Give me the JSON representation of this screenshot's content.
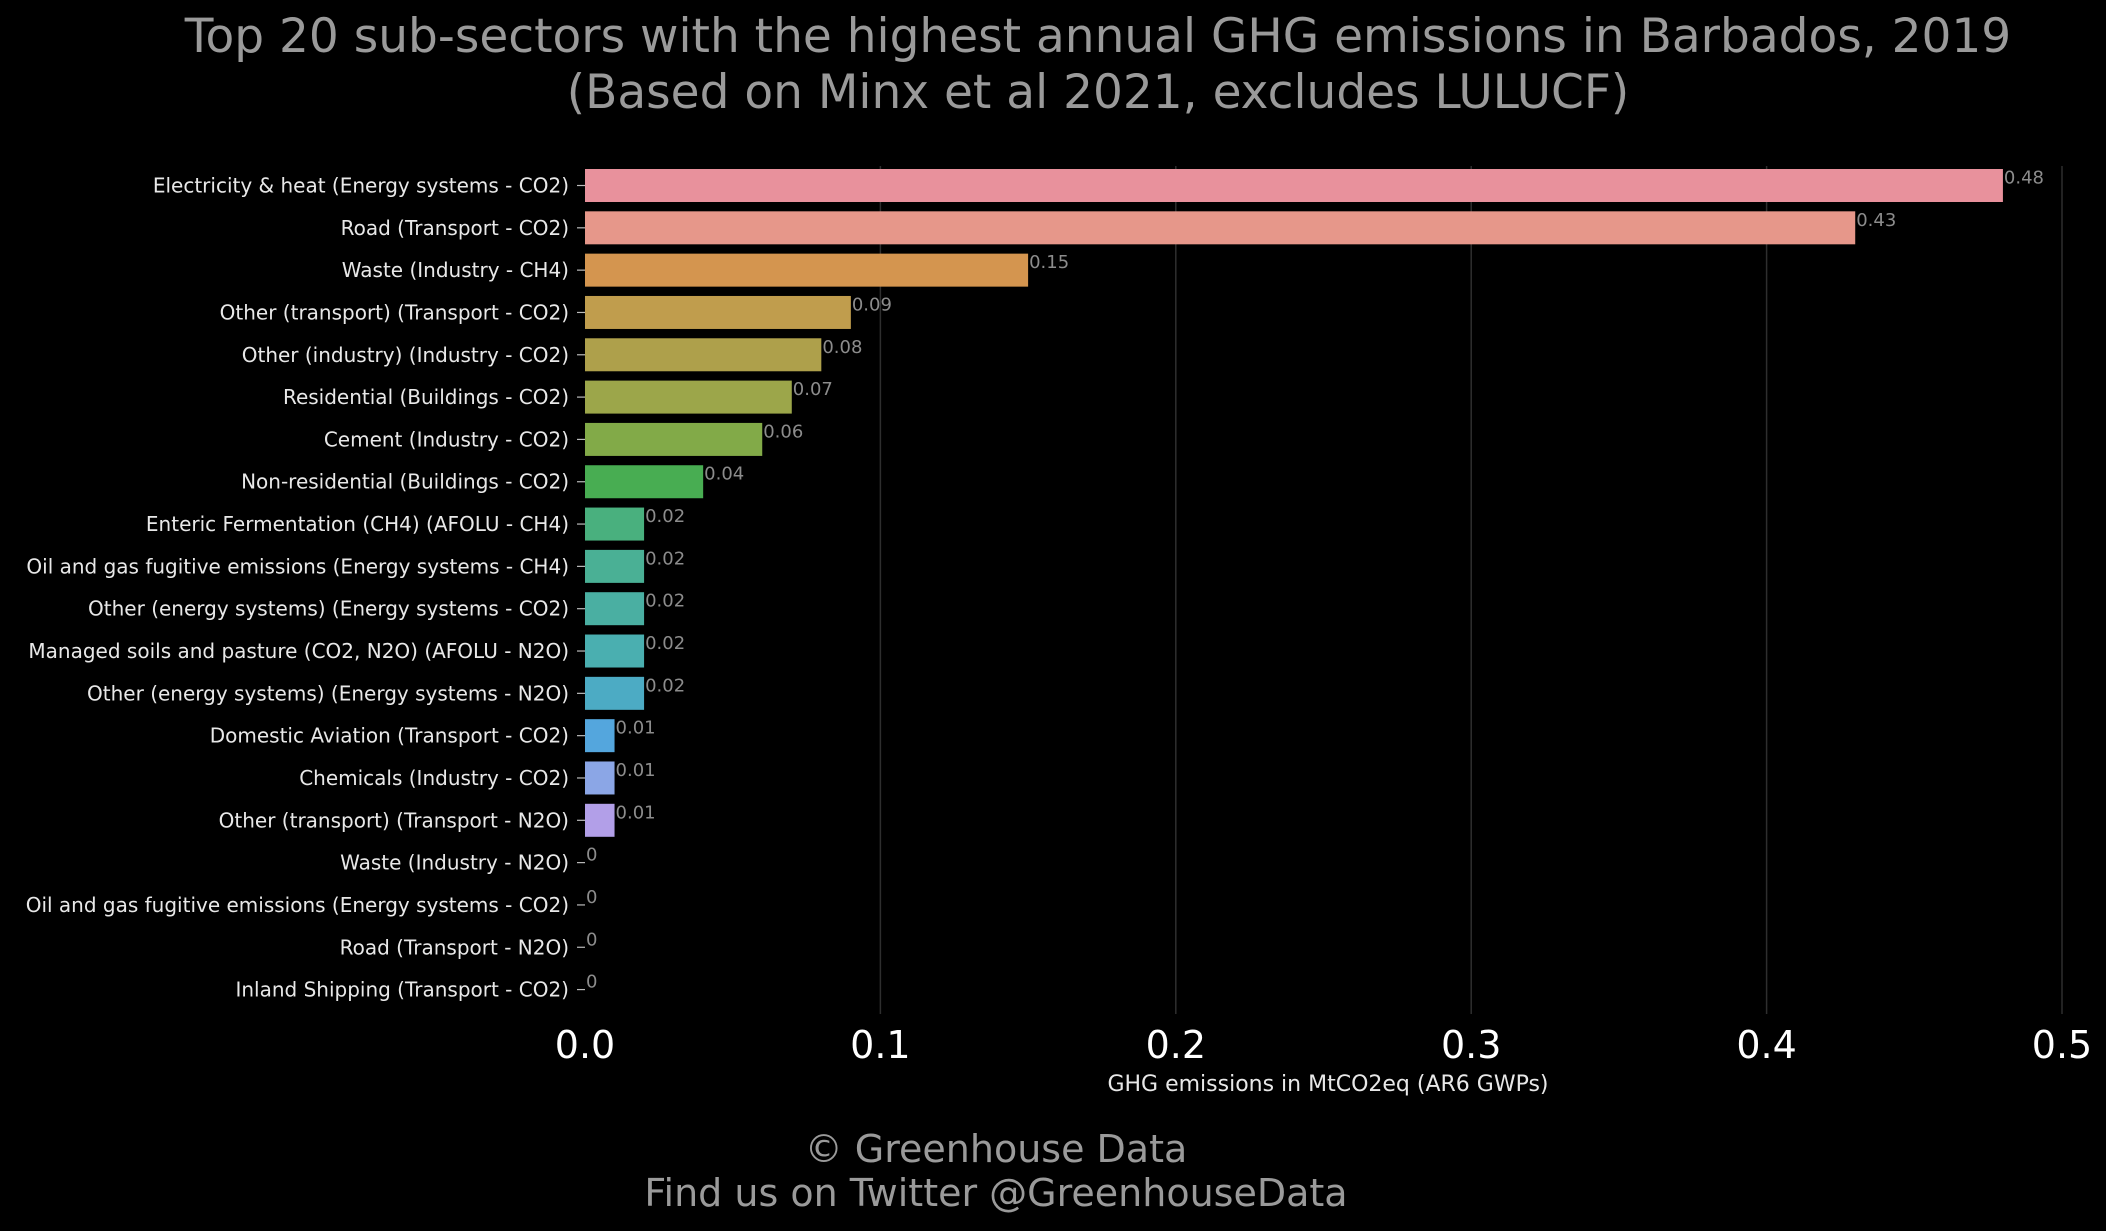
{
  "title_line1": "Top 20 sub-sectors with the highest annual GHG emissions in Barbados, 2019",
  "title_line2": "(Based on Minx et al 2021, excludes LULUCF)",
  "credit_line1": "© Greenhouse Data",
  "credit_line2": "Find us on Twitter @GreenhouseData",
  "colors": {
    "background": "#000000",
    "title": "#9a9a9a",
    "label": "#e8e8e8",
    "value_label": "#8c8c8c",
    "grid": "#2e2e2e"
  },
  "chart_data": {
    "type": "bar",
    "orientation": "horizontal",
    "title": "Top 20 sub-sectors with the highest annual GHG emissions in Barbados, 2019",
    "subtitle": "(Based on Minx et al 2021, excludes LULUCF)",
    "xlabel": "GHG emissions in MtCO2eq (AR6 GWPs)",
    "ylabel": "",
    "xlim": [
      0,
      0.5
    ],
    "xticks": [
      0.0,
      0.1,
      0.2,
      0.3,
      0.4,
      0.5
    ],
    "xtick_labels": [
      "0.0",
      "0.1",
      "0.2",
      "0.3",
      "0.4",
      "0.5"
    ],
    "grid": "vertical",
    "categories": [
      "Electricity & heat (Energy systems - CO2)",
      "Road (Transport - CO2)",
      "Waste (Industry - CH4)",
      "Other (transport) (Transport - CO2)",
      "Other (industry) (Industry - CO2)",
      "Residential (Buildings - CO2)",
      "Cement (Industry - CO2)",
      "Non-residential (Buildings - CO2)",
      "Enteric Fermentation (CH4) (AFOLU - CH4)",
      "Oil and gas fugitive emissions (Energy systems - CH4)",
      "Other (energy systems) (Energy systems - CO2)",
      "Managed soils and pasture (CO2, N2O) (AFOLU - N2O)",
      "Other (energy systems) (Energy systems - N2O)",
      "Domestic Aviation (Transport - CO2)",
      "Chemicals (Industry - CO2)",
      "Other (transport) (Transport - N2O)",
      "Waste (Industry - N2O)",
      "Oil and gas fugitive emissions (Energy systems - CO2)",
      "Road (Transport - N2O)",
      "Inland Shipping (Transport - CO2)"
    ],
    "values": [
      0.48,
      0.43,
      0.15,
      0.09,
      0.08,
      0.07,
      0.06,
      0.04,
      0.02,
      0.02,
      0.02,
      0.02,
      0.02,
      0.01,
      0.01,
      0.01,
      0,
      0,
      0,
      0
    ],
    "value_labels": [
      "0.48",
      "0.43",
      "0.15",
      "0.09",
      "0.08",
      "0.07",
      "0.06",
      "0.04",
      "0.02",
      "0.02",
      "0.02",
      "0.02",
      "0.02",
      "0.01",
      "0.01",
      "0.01",
      "0",
      "0",
      "0",
      "0"
    ],
    "bar_colors": [
      "#e8919c",
      "#e6978a",
      "#d4954f",
      "#c09d4d",
      "#aea04b",
      "#9ca64a",
      "#82aa48",
      "#48ad52",
      "#49b07e",
      "#4ab095",
      "#4aafa2",
      "#4aafb0",
      "#4cabc4",
      "#54a6dd",
      "#8ba6e6",
      "#b29fe8",
      "#c99ae4",
      "#dd93d9",
      "#e58fc6",
      "#e890b0"
    ]
  }
}
